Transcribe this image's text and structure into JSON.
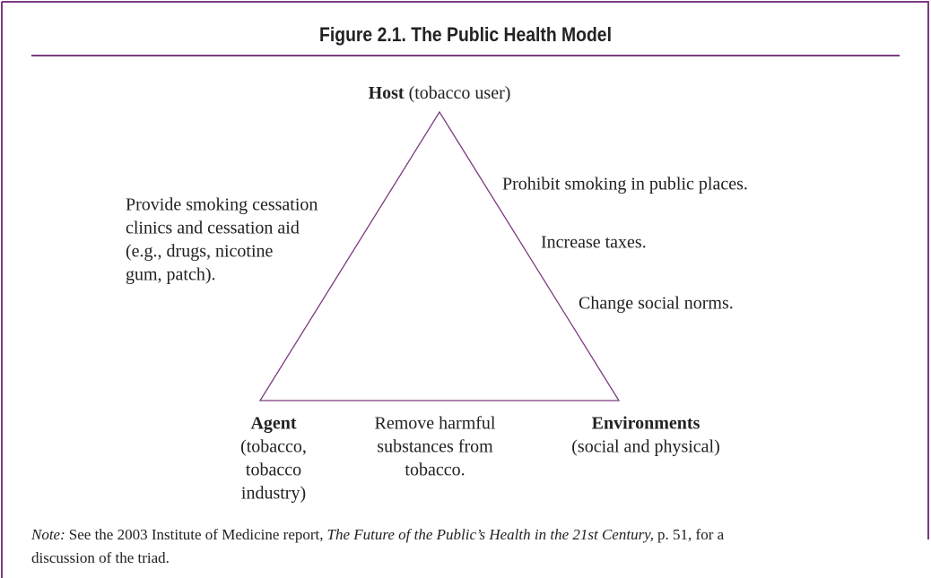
{
  "header": {
    "title": "Figure 2.1. The Public Health Model"
  },
  "nodes": [
    {
      "label": "Host",
      "detail": [
        "(tobacco user)"
      ]
    },
    {
      "label": "Agent",
      "detail": [
        "(tobacco,",
        "tobacco",
        "industry)"
      ]
    },
    {
      "label": "Environments",
      "detail": [
        "(social and physical)"
      ]
    }
  ],
  "interventions": {
    "host": [
      "Provide smoking cessation",
      "clinics and cessation aid",
      "(e.g., drugs, nicotine",
      "gum, patch)."
    ],
    "environments": [
      "Prohibit smoking in public places.",
      "Increase taxes.",
      "Change social norms."
    ],
    "agent": [
      "Remove harmful",
      "substances from",
      "tobacco."
    ]
  },
  "note": {
    "lead": "Note:",
    "text1": "See the 2003 Institute of Medicine report,",
    "title": "The Future of the Public’s Health in the 21st Century,",
    "text2": "p. 51, for a",
    "line2": "discussion of the triad."
  }
}
